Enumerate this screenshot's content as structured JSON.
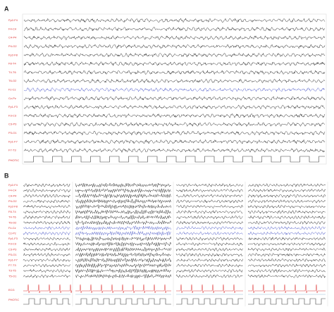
{
  "panel_a": {
    "label": "A",
    "channels": [
      "Fp2-F4",
      "F4-C4",
      "C4-P4",
      "P4-O2",
      "Fp2-F8",
      "F8-T4",
      "T4-T6",
      "T6-O2",
      "Fz-Cz",
      "Cz-Pz",
      "Fp1-F3",
      "F3-C3",
      "C3-P3",
      "P3-O1",
      "Fp1-F7",
      "F7-T3"
    ],
    "stim_label": "PHOTIC"
  },
  "panel_b": {
    "label": "B",
    "channels": [
      "Fp2-F4",
      "F4-C4",
      "C4-P4",
      "P4-O2",
      "Fp2-F8",
      "F8-T4",
      "T4-T6",
      "T6-O2",
      "Fz-Cz",
      "Cz-Pz",
      "Fp1-F3",
      "F3-C3",
      "C3-P3",
      "P3-O1",
      "Fp1-F7",
      "F7-T3",
      "T3-T5",
      "T5-O1"
    ],
    "ecg_label": "ECG",
    "stim_label": "PHOTIC"
  }
}
